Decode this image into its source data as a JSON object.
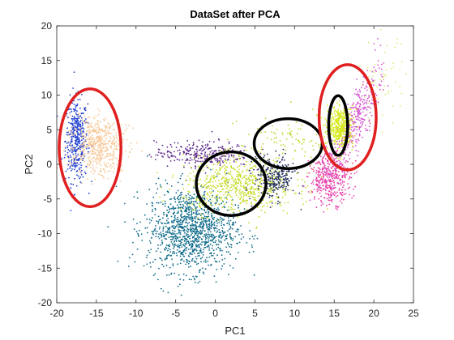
{
  "chart_data": {
    "type": "scatter",
    "title": "DataSet after PCA",
    "xlabel": "PC1",
    "ylabel": "PC2",
    "xlim": [
      -20,
      25
    ],
    "ylim": [
      -20,
      20
    ],
    "xticks": [
      -20,
      -15,
      -10,
      -5,
      0,
      5,
      10,
      15,
      20,
      25
    ],
    "yticks": [
      -20,
      -15,
      -10,
      -5,
      0,
      5,
      10,
      15,
      20
    ],
    "grid": false,
    "legend": "none",
    "series": [
      {
        "color": "#1f3fd1",
        "center": [
          -17.5,
          3.5
        ],
        "spread": [
          0.7,
          3.0
        ],
        "count": 420
      },
      {
        "color": "#f7c99a",
        "center": [
          -14.8,
          2.8
        ],
        "spread": [
          1.6,
          2.0
        ],
        "count": 560,
        "tilt": -0.5
      },
      {
        "color": "#0f6b8a",
        "center": [
          -3.0,
          -9.5
        ],
        "spread": [
          2.8,
          3.0
        ],
        "count": 1200
      },
      {
        "color": "#5e2a8c",
        "center": [
          -1.5,
          1.5
        ],
        "spread": [
          3.0,
          0.9
        ],
        "count": 300
      },
      {
        "color": "#c8dc2a",
        "center": [
          3.0,
          -3.0
        ],
        "spread": [
          3.5,
          2.0
        ],
        "count": 650
      },
      {
        "color": "#1f2d5e",
        "center": [
          7.5,
          -2.0
        ],
        "spread": [
          1.3,
          1.5
        ],
        "count": 260
      },
      {
        "color": "#bfd62a",
        "center": [
          9.0,
          3.5
        ],
        "spread": [
          3.0,
          2.0
        ],
        "count": 100
      },
      {
        "color": "#e83ea8",
        "center": [
          14.5,
          -2.0
        ],
        "spread": [
          1.3,
          1.8
        ],
        "count": 380
      },
      {
        "color": "#d454d0",
        "center": [
          17.5,
          6.0
        ],
        "spread": [
          1.0,
          4.0
        ],
        "count": 380,
        "tilt": 1.8
      },
      {
        "color": "#d6ec1c",
        "center": [
          15.8,
          5.5
        ],
        "spread": [
          0.8,
          1.4
        ],
        "count": 400
      },
      {
        "color": "#e2e87a",
        "center": [
          21.0,
          12.0
        ],
        "spread": [
          1.5,
          3.0
        ],
        "count": 60
      }
    ],
    "annotations": [
      {
        "shape": "ellipse",
        "color": "#e02020",
        "center": [
          -15.8,
          2.4
        ],
        "radii": [
          3.9,
          8.5
        ]
      },
      {
        "shape": "ellipse",
        "color": "#000000",
        "center": [
          2.0,
          -2.8
        ],
        "radii": [
          4.4,
          4.6
        ]
      },
      {
        "shape": "ellipse",
        "color": "#000000",
        "center": [
          9.2,
          3.0
        ],
        "radii": [
          4.3,
          3.6
        ]
      },
      {
        "shape": "ellipse",
        "color": "#000000",
        "center": [
          15.5,
          5.6
        ],
        "radii": [
          1.2,
          4.3
        ]
      },
      {
        "shape": "ellipse",
        "color": "#e02020",
        "center": [
          16.7,
          6.8
        ],
        "radii": [
          3.6,
          7.6
        ]
      }
    ]
  }
}
